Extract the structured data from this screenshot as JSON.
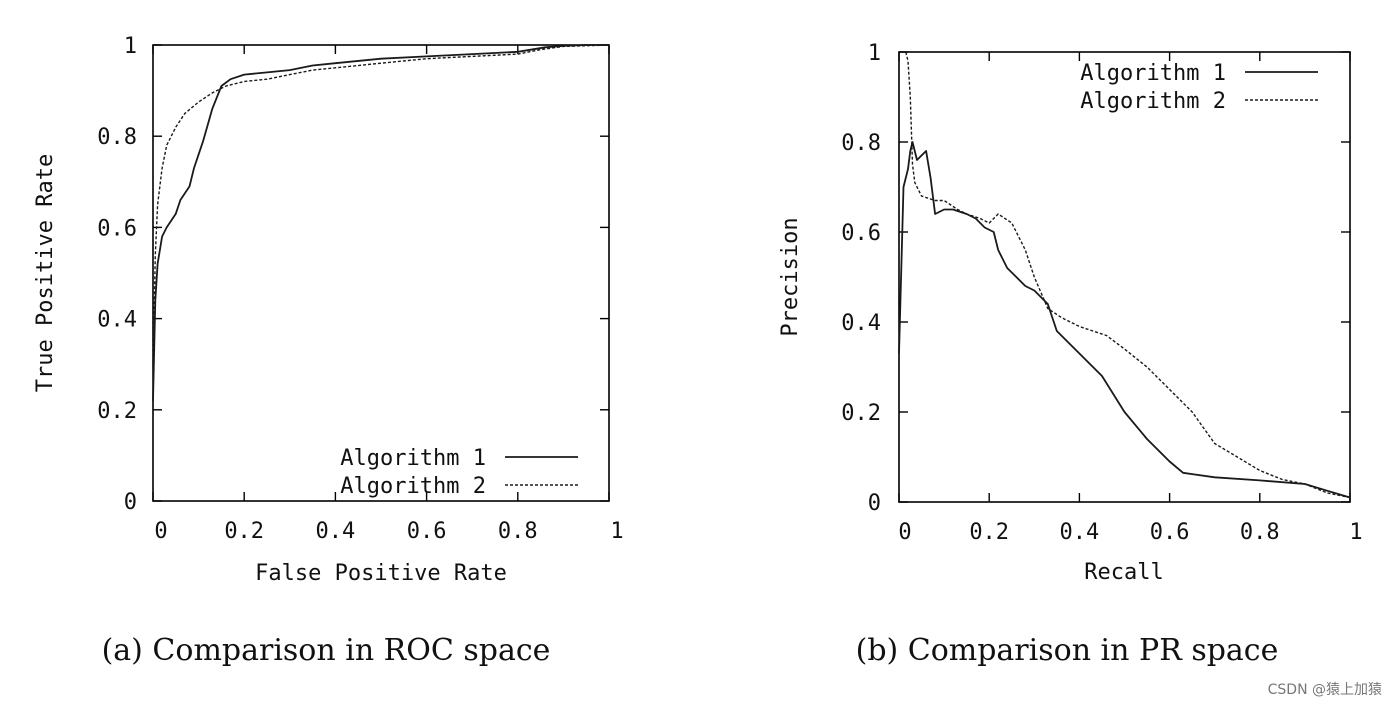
{
  "chart_data": [
    {
      "type": "line",
      "title": "",
      "xlabel": "False Positive Rate",
      "ylabel": "True Positive Rate",
      "xlim": [
        0,
        1
      ],
      "ylim": [
        0,
        1
      ],
      "xticks": [
        "0",
        "0.2",
        "0.4",
        "0.6",
        "0.8",
        "1"
      ],
      "yticks": [
        "0",
        "0.2",
        "0.4",
        "0.6",
        "0.8",
        "1"
      ],
      "grid": false,
      "legend_position": "bottom-right",
      "caption": "(a) Comparison in ROC space",
      "series": [
        {
          "name": "Algorithm 1",
          "style": "solid",
          "x": [
            0,
            0.005,
            0.01,
            0.02,
            0.03,
            0.05,
            0.06,
            0.08,
            0.09,
            0.11,
            0.13,
            0.15,
            0.17,
            0.2,
            0.25,
            0.3,
            0.35,
            0.4,
            0.5,
            0.6,
            0.7,
            0.8,
            0.86,
            0.9,
            0.95,
            1.0
          ],
          "y": [
            0.22,
            0.44,
            0.52,
            0.58,
            0.6,
            0.63,
            0.66,
            0.69,
            0.73,
            0.79,
            0.86,
            0.91,
            0.925,
            0.935,
            0.94,
            0.945,
            0.955,
            0.96,
            0.97,
            0.975,
            0.98,
            0.985,
            0.995,
            0.998,
            1.0,
            1.0
          ]
        },
        {
          "name": "Algorithm 2",
          "style": "dashed",
          "x": [
            0,
            0.005,
            0.01,
            0.02,
            0.03,
            0.05,
            0.07,
            0.1,
            0.13,
            0.16,
            0.2,
            0.25,
            0.3,
            0.35,
            0.4,
            0.5,
            0.6,
            0.7,
            0.8,
            0.85,
            0.9,
            1.0
          ],
          "y": [
            0.3,
            0.54,
            0.65,
            0.73,
            0.78,
            0.82,
            0.85,
            0.875,
            0.895,
            0.91,
            0.92,
            0.925,
            0.935,
            0.945,
            0.95,
            0.96,
            0.97,
            0.975,
            0.98,
            0.99,
            0.997,
            1.0
          ]
        }
      ]
    },
    {
      "type": "line",
      "title": "",
      "xlabel": "Recall",
      "ylabel": "Precision",
      "xlim": [
        0,
        1
      ],
      "ylim": [
        0,
        1
      ],
      "xticks": [
        "0",
        "0.2",
        "0.4",
        "0.6",
        "0.8",
        "1"
      ],
      "yticks": [
        "0",
        "0.2",
        "0.4",
        "0.6",
        "0.8",
        "1"
      ],
      "grid": false,
      "legend_position": "top-right",
      "caption": "(b) Comparison in PR space",
      "series": [
        {
          "name": "Algorithm 1",
          "style": "solid",
          "x": [
            0,
            0.01,
            0.02,
            0.025,
            0.03,
            0.04,
            0.05,
            0.06,
            0.07,
            0.08,
            0.1,
            0.12,
            0.15,
            0.17,
            0.19,
            0.21,
            0.22,
            0.23,
            0.24,
            0.26,
            0.28,
            0.3,
            0.33,
            0.35,
            0.4,
            0.45,
            0.5,
            0.55,
            0.6,
            0.63,
            0.65,
            0.7,
            0.8,
            0.9,
            0.95,
            1.0
          ],
          "y": [
            0.33,
            0.7,
            0.74,
            0.78,
            0.8,
            0.76,
            0.77,
            0.78,
            0.72,
            0.64,
            0.65,
            0.65,
            0.64,
            0.63,
            0.61,
            0.6,
            0.56,
            0.54,
            0.52,
            0.5,
            0.48,
            0.47,
            0.44,
            0.38,
            0.33,
            0.28,
            0.2,
            0.14,
            0.09,
            0.065,
            0.062,
            0.055,
            0.048,
            0.04,
            0.025,
            0.01
          ]
        },
        {
          "name": "Algorithm 2",
          "style": "dashed",
          "x": [
            0.015,
            0.02,
            0.025,
            0.03,
            0.035,
            0.05,
            0.08,
            0.1,
            0.13,
            0.15,
            0.18,
            0.2,
            0.22,
            0.25,
            0.28,
            0.3,
            0.33,
            0.36,
            0.4,
            0.43,
            0.46,
            0.5,
            0.55,
            0.6,
            0.65,
            0.7,
            0.75,
            0.8,
            0.85,
            0.9,
            0.95,
            1.0
          ],
          "y": [
            1.0,
            0.98,
            0.9,
            0.75,
            0.71,
            0.68,
            0.67,
            0.67,
            0.65,
            0.64,
            0.63,
            0.62,
            0.64,
            0.62,
            0.56,
            0.5,
            0.43,
            0.41,
            0.39,
            0.38,
            0.37,
            0.34,
            0.3,
            0.25,
            0.2,
            0.13,
            0.1,
            0.07,
            0.05,
            0.04,
            0.02,
            0.01
          ]
        }
      ]
    }
  ],
  "watermark": "CSDN @猿上加猿"
}
